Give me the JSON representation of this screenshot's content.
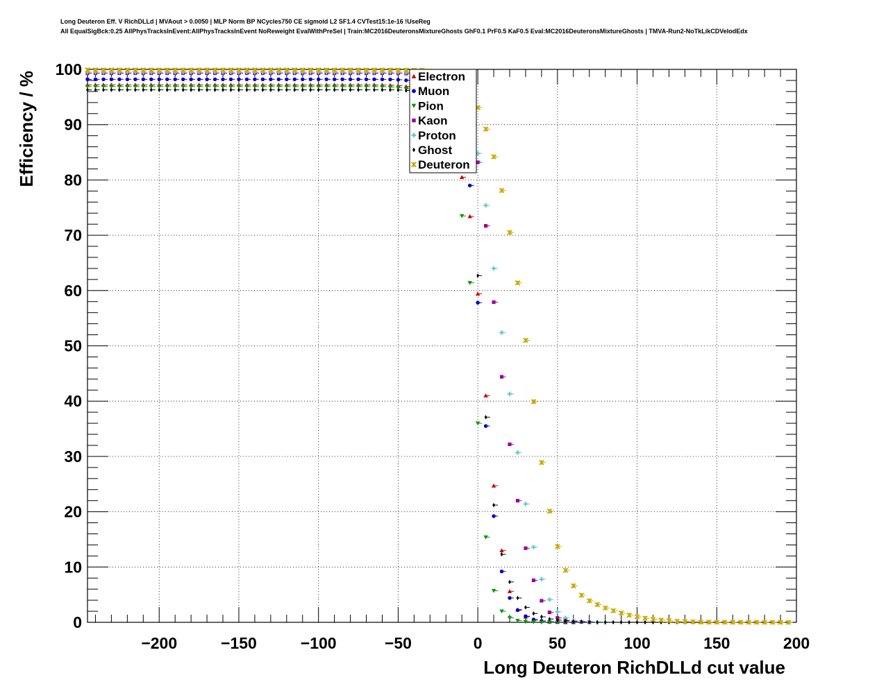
{
  "chart_data": {
    "type": "scatter",
    "title_line1": "Long Deuteron Eff. V RichDLLd | MVAout > 0.0050 | MLP Norm BP NCycles750 CE sigmoid L2 SF1.4 CVTest15:1e-16 !UseReg",
    "title_line2": "All EqualSigBck:0.25 AllPhysTracksInEvent:AllPhysTracksInEvent NoReweight EvalWithPreSel | Train:MC2016DeuteronsMixtureGhosts GhF0.1 PrF0.5 KaF0.5 Eval:MC2016DeuteronsMixtureGhosts | TMVA-Run2-NoTkLikCDVelodEdx",
    "xlabel": "Long Deuteron RichDLLd cut value",
    "ylabel": "Efficiency / %",
    "xlim": [
      -245,
      200
    ],
    "ylim": [
      0,
      100
    ],
    "xticks": [
      -200,
      -150,
      -100,
      -50,
      0,
      50,
      100,
      150,
      200
    ],
    "xtick_labels": [
      "−200",
      "−150",
      "−100",
      "−50",
      "0",
      "50",
      "100",
      "150",
      "200"
    ],
    "yticks": [
      0,
      10,
      20,
      30,
      40,
      50,
      60,
      70,
      80,
      90,
      100
    ],
    "ytick_labels": [
      "0",
      "10",
      "20",
      "30",
      "40",
      "50",
      "60",
      "70",
      "80",
      "90",
      "100"
    ],
    "grid": true,
    "legend_position": "top-center",
    "series": [
      {
        "name": "Electron",
        "color": "#cc0000",
        "marker": "triangle-up",
        "x0": -245,
        "x1": 60,
        "dx": 5,
        "plateau": 97.2,
        "tail": [
          [
            -10,
            80.5
          ],
          [
            -5,
            73.4
          ],
          [
            0,
            59.4
          ],
          [
            5,
            41.0
          ],
          [
            10,
            24.7
          ],
          [
            15,
            13.0
          ],
          [
            20,
            5.6
          ],
          [
            25,
            2.3
          ],
          [
            30,
            1.0
          ],
          [
            35,
            0.4
          ],
          [
            40,
            0.2
          ],
          [
            45,
            0.1
          ],
          [
            50,
            0.05
          ],
          [
            55,
            0.0
          ],
          [
            60,
            0.0
          ]
        ]
      },
      {
        "name": "Muon",
        "color": "#0000cc",
        "marker": "circle",
        "x0": -245,
        "x1": 60,
        "dx": 5,
        "plateau": 98.2,
        "tail": [
          [
            -5,
            79.0
          ],
          [
            0,
            57.8
          ],
          [
            5,
            35.5
          ],
          [
            10,
            19.2
          ],
          [
            15,
            9.2
          ],
          [
            20,
            4.4
          ],
          [
            25,
            2.2
          ],
          [
            30,
            1.1
          ],
          [
            35,
            0.5
          ],
          [
            40,
            0.25
          ],
          [
            45,
            0.1
          ],
          [
            50,
            0.05
          ],
          [
            55,
            0.0
          ],
          [
            60,
            0.0
          ]
        ]
      },
      {
        "name": "Pion",
        "color": "#009900",
        "marker": "triangle-down",
        "x0": -245,
        "x1": 60,
        "dx": 5,
        "plateau": 96.9,
        "tail": [
          [
            -10,
            73.5
          ],
          [
            -5,
            61.4
          ],
          [
            0,
            36.0
          ],
          [
            5,
            15.4
          ],
          [
            10,
            5.7
          ],
          [
            15,
            2.0
          ],
          [
            20,
            0.8
          ],
          [
            25,
            0.3
          ],
          [
            30,
            0.1
          ],
          [
            35,
            0.05
          ],
          [
            40,
            0.0
          ],
          [
            45,
            0.0
          ],
          [
            50,
            0.0
          ],
          [
            55,
            0.0
          ],
          [
            60,
            0.0
          ]
        ]
      },
      {
        "name": "Kaon",
        "color": "#990099",
        "marker": "square",
        "x0": -245,
        "x1": 70,
        "dx": 5,
        "plateau": 99.3,
        "tail": [
          [
            0,
            83.2
          ],
          [
            5,
            71.7
          ],
          [
            10,
            57.9
          ],
          [
            15,
            44.4
          ],
          [
            20,
            32.2
          ],
          [
            25,
            22.0
          ],
          [
            30,
            13.4
          ],
          [
            35,
            7.6
          ],
          [
            40,
            3.9
          ],
          [
            45,
            1.8
          ],
          [
            50,
            0.8
          ],
          [
            55,
            0.35
          ],
          [
            60,
            0.15
          ],
          [
            65,
            0.05
          ],
          [
            70,
            0.0
          ]
        ]
      },
      {
        "name": "Proton",
        "color": "#66cccc",
        "marker": "cross",
        "x0": -245,
        "x1": 80,
        "dx": 5,
        "plateau": 99.5,
        "tail": [
          [
            -5,
            93.2
          ],
          [
            0,
            84.8
          ],
          [
            5,
            75.4
          ],
          [
            10,
            64.0
          ],
          [
            15,
            52.4
          ],
          [
            20,
            41.3
          ],
          [
            25,
            30.7
          ],
          [
            30,
            21.4
          ],
          [
            35,
            13.6
          ],
          [
            40,
            7.8
          ],
          [
            45,
            4.1
          ],
          [
            50,
            1.9
          ],
          [
            55,
            0.8
          ],
          [
            60,
            0.35
          ],
          [
            65,
            0.15
          ],
          [
            70,
            0.05
          ],
          [
            75,
            0.0
          ],
          [
            80,
            0.0
          ]
        ]
      },
      {
        "name": "Ghost",
        "color": "#000000",
        "marker": "diamond",
        "x0": -245,
        "x1": 145,
        "dx": 5,
        "plateau": 96.3,
        "tail": [
          [
            0,
            62.7
          ],
          [
            5,
            37.1
          ],
          [
            10,
            21.2
          ],
          [
            15,
            12.3
          ],
          [
            20,
            7.3
          ],
          [
            25,
            4.4
          ],
          [
            30,
            2.7
          ],
          [
            35,
            1.6
          ],
          [
            40,
            1.0
          ],
          [
            45,
            0.6
          ],
          [
            50,
            0.4
          ],
          [
            55,
            0.25
          ],
          [
            60,
            0.15
          ],
          [
            65,
            0.1
          ],
          [
            70,
            0.05
          ],
          [
            75,
            0.0
          ],
          [
            145,
            0.0
          ]
        ]
      },
      {
        "name": "Deuteron",
        "color": "#ccaa00",
        "marker": "star",
        "x0": -245,
        "x1": 195,
        "dx": 5,
        "plateau": 99.9,
        "tail": [
          [
            -30,
            99.7
          ],
          [
            -20,
            99.3
          ],
          [
            -10,
            98.3
          ],
          [
            -5,
            96.8
          ],
          [
            0,
            93.1
          ],
          [
            5,
            89.2
          ],
          [
            10,
            84.2
          ],
          [
            15,
            78.1
          ],
          [
            20,
            70.5
          ],
          [
            25,
            61.4
          ],
          [
            30,
            51.0
          ],
          [
            35,
            39.9
          ],
          [
            40,
            28.9
          ],
          [
            45,
            20.1
          ],
          [
            50,
            13.7
          ],
          [
            55,
            9.4
          ],
          [
            60,
            6.6
          ],
          [
            65,
            4.9
          ],
          [
            70,
            3.9
          ],
          [
            75,
            3.2
          ],
          [
            80,
            2.6
          ],
          [
            85,
            2.1
          ],
          [
            90,
            1.7
          ],
          [
            95,
            1.3
          ],
          [
            100,
            1.0
          ],
          [
            105,
            0.75
          ],
          [
            110,
            0.55
          ],
          [
            115,
            0.4
          ],
          [
            120,
            0.3
          ],
          [
            125,
            0.2
          ],
          [
            130,
            0.15
          ],
          [
            135,
            0.1
          ],
          [
            140,
            0.05
          ],
          [
            145,
            0.03
          ],
          [
            150,
            0.02
          ],
          [
            195,
            0.0
          ]
        ]
      }
    ]
  }
}
